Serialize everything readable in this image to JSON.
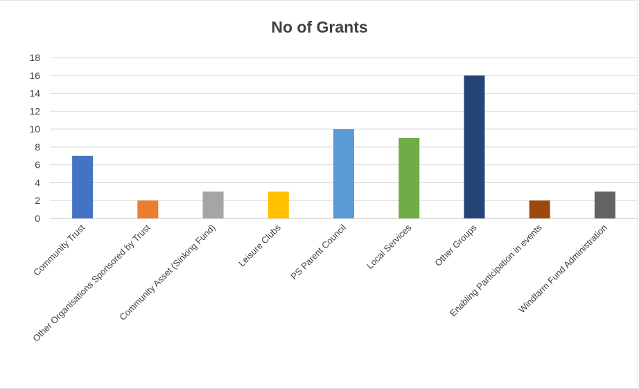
{
  "chart_data": {
    "type": "bar",
    "title": "No of Grants",
    "categories": [
      "Community Trust",
      "Other Organisations Sponsored by Trust",
      "Community Asset (Sinking Fund)",
      "Leisure Clubs",
      "PS Parent Council",
      "Local Services",
      "Other Groups",
      "Enabling Participation in events",
      "Windfarm Fund Administration"
    ],
    "values": [
      7,
      2,
      3,
      3,
      10,
      9,
      16,
      2,
      3
    ],
    "colors": [
      "#4472c4",
      "#ed7d31",
      "#a5a5a5",
      "#ffc000",
      "#5b9bd5",
      "#70ad47",
      "#264478",
      "#9e480e",
      "#636363"
    ],
    "ylim": [
      0,
      18
    ],
    "yticks": [
      0,
      2,
      4,
      6,
      8,
      10,
      12,
      14,
      16,
      18
    ],
    "grid": true,
    "legend": "none",
    "xlabel": "",
    "ylabel": ""
  }
}
